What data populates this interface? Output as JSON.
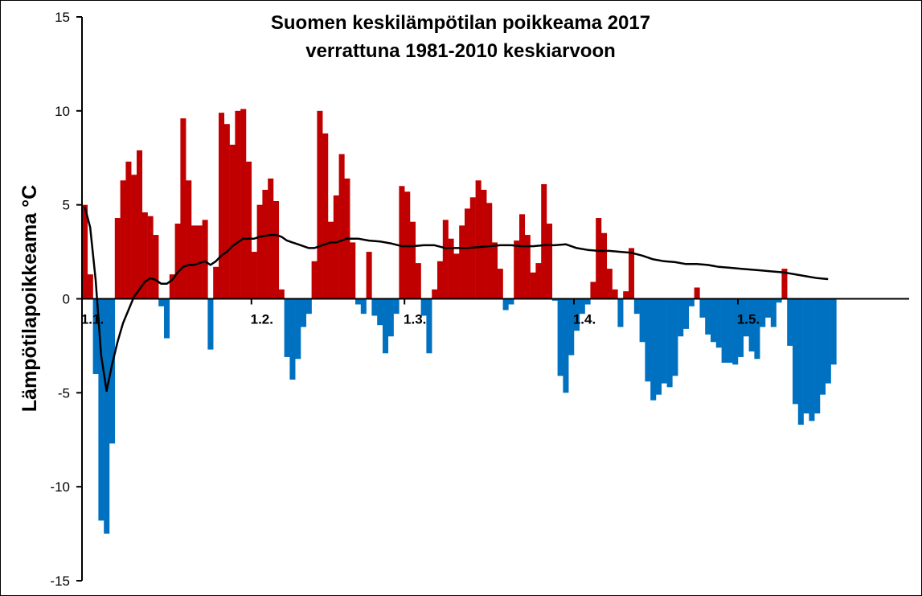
{
  "chart_data": {
    "type": "bar",
    "title": "Suomen keskilämpötilan poikkeama 2017",
    "subtitle": "verrattuna 1981-2010 keskiarvoon",
    "ylabel": "Lämpötilapoikkeama °C",
    "xlabel": "",
    "ylim": [
      -15,
      15
    ],
    "yticks": [
      "15",
      "10",
      "5",
      "0",
      "-5",
      "-10",
      "-15"
    ],
    "ytick_values": [
      15,
      10,
      5,
      0,
      -5,
      -10,
      -15
    ],
    "xticks": [
      {
        "label": "1.1.",
        "day": 0
      },
      {
        "label": "1.2.",
        "day": 31
      },
      {
        "label": "1.3.",
        "day": 59
      },
      {
        "label": "1.4.",
        "day": 90
      },
      {
        "label": "1.5.",
        "day": 120
      }
    ],
    "x_start": "2017-01-01",
    "positive_color": "#c00000",
    "negative_color": "#0070c0",
    "line_color": "#000000",
    "values": [
      5.0,
      1.3,
      -4.0,
      -11.8,
      -12.5,
      -7.7,
      4.3,
      6.3,
      7.3,
      6.6,
      7.9,
      4.6,
      4.4,
      3.4,
      -0.4,
      -2.1,
      1.3,
      4.0,
      9.6,
      6.3,
      3.9,
      3.9,
      4.2,
      -2.7,
      1.7,
      9.9,
      9.3,
      8.2,
      10.0,
      10.1,
      7.3,
      2.5,
      5.0,
      5.8,
      6.4,
      5.2,
      0.5,
      -3.1,
      -4.3,
      -3.2,
      -1.5,
      -0.8,
      2.0,
      10.0,
      8.8,
      4.1,
      5.5,
      7.7,
      6.4,
      3.0,
      -0.3,
      -0.8,
      2.5,
      -0.9,
      -1.4,
      -2.9,
      -2.0,
      -0.8,
      6.0,
      5.7,
      4.1,
      1.9,
      -0.9,
      -2.9,
      0.5,
      2.0,
      4.2,
      3.2,
      2.4,
      3.9,
      4.8,
      5.4,
      6.3,
      5.8,
      5.1,
      3.0,
      1.6,
      -0.6,
      -0.3,
      3.1,
      4.5,
      3.4,
      1.4,
      1.9,
      6.1,
      4.0,
      -0.1,
      -4.1,
      -5.0,
      -3.0,
      -1.7,
      -0.8,
      -0.3,
      0.9,
      4.3,
      3.5,
      1.6,
      0.5,
      -1.5,
      0.4,
      2.7,
      -0.8,
      -2.3,
      -4.4,
      -5.4,
      -5.1,
      -4.5,
      -4.7,
      -4.1,
      -2.0,
      -1.6,
      -0.4,
      0.6,
      -1.0,
      -1.9,
      -2.3,
      -2.6,
      -3.4,
      -3.4,
      -3.5,
      -3.1,
      -2.0,
      -2.8,
      -3.2,
      -1.5,
      -1.0,
      -1.5,
      -0.2,
      1.6,
      -2.5,
      -5.6,
      -6.7,
      -6.1,
      -6.5,
      -6.1,
      -5.1,
      -4.5,
      -3.5
    ],
    "mean_line": [
      [
        0,
        4.9
      ],
      [
        1,
        3.8
      ],
      [
        2,
        1.0
      ],
      [
        3,
        -3.0
      ],
      [
        4,
        -4.9
      ],
      [
        5,
        -3.5
      ],
      [
        6,
        -2.3
      ],
      [
        7,
        -1.3
      ],
      [
        8,
        -0.6
      ],
      [
        9,
        0.1
      ],
      [
        10,
        0.5
      ],
      [
        11,
        0.9
      ],
      [
        12,
        1.1
      ],
      [
        13,
        1.0
      ],
      [
        14,
        0.8
      ],
      [
        15,
        0.8
      ],
      [
        16,
        1.0
      ],
      [
        17,
        1.4
      ],
      [
        18,
        1.7
      ],
      [
        19,
        1.8
      ],
      [
        20,
        1.8
      ],
      [
        21,
        1.9
      ],
      [
        22,
        2.0
      ],
      [
        23,
        1.8
      ],
      [
        24,
        2.0
      ],
      [
        25,
        2.3
      ],
      [
        26,
        2.5
      ],
      [
        27,
        2.8
      ],
      [
        28,
        3.0
      ],
      [
        29,
        3.2
      ],
      [
        30,
        3.2
      ],
      [
        31,
        3.2
      ],
      [
        32,
        3.3
      ],
      [
        33,
        3.35
      ],
      [
        34,
        3.4
      ],
      [
        35,
        3.4
      ],
      [
        36,
        3.3
      ],
      [
        37,
        3.1
      ],
      [
        38,
        3.0
      ],
      [
        39,
        2.9
      ],
      [
        40,
        2.8
      ],
      [
        41,
        2.7
      ],
      [
        42,
        2.7
      ],
      [
        43,
        2.8
      ],
      [
        44,
        2.9
      ],
      [
        45,
        3.0
      ],
      [
        46,
        3.0
      ],
      [
        47,
        3.1
      ],
      [
        48,
        3.2
      ],
      [
        49,
        3.2
      ],
      [
        50,
        3.2
      ],
      [
        52,
        3.1
      ],
      [
        54,
        3.05
      ],
      [
        56,
        2.95
      ],
      [
        58,
        2.8
      ],
      [
        60,
        2.8
      ],
      [
        62,
        2.85
      ],
      [
        64,
        2.85
      ],
      [
        66,
        2.7
      ],
      [
        68,
        2.7
      ],
      [
        70,
        2.7
      ],
      [
        72,
        2.75
      ],
      [
        74,
        2.8
      ],
      [
        76,
        2.85
      ],
      [
        78,
        2.85
      ],
      [
        80,
        2.8
      ],
      [
        82,
        2.8
      ],
      [
        84,
        2.85
      ],
      [
        86,
        2.85
      ],
      [
        88,
        2.9
      ],
      [
        90,
        2.7
      ],
      [
        92,
        2.6
      ],
      [
        94,
        2.55
      ],
      [
        96,
        2.55
      ],
      [
        98,
        2.5
      ],
      [
        100,
        2.45
      ],
      [
        102,
        2.3
      ],
      [
        104,
        2.1
      ],
      [
        106,
        2.0
      ],
      [
        108,
        1.95
      ],
      [
        110,
        1.85
      ],
      [
        112,
        1.85
      ],
      [
        114,
        1.8
      ],
      [
        116,
        1.7
      ],
      [
        118,
        1.65
      ],
      [
        120,
        1.6
      ],
      [
        122,
        1.55
      ],
      [
        124,
        1.5
      ],
      [
        126,
        1.45
      ],
      [
        128,
        1.4
      ],
      [
        130,
        1.3
      ],
      [
        132,
        1.2
      ],
      [
        134,
        1.1
      ],
      [
        136,
        1.05
      ]
    ]
  }
}
